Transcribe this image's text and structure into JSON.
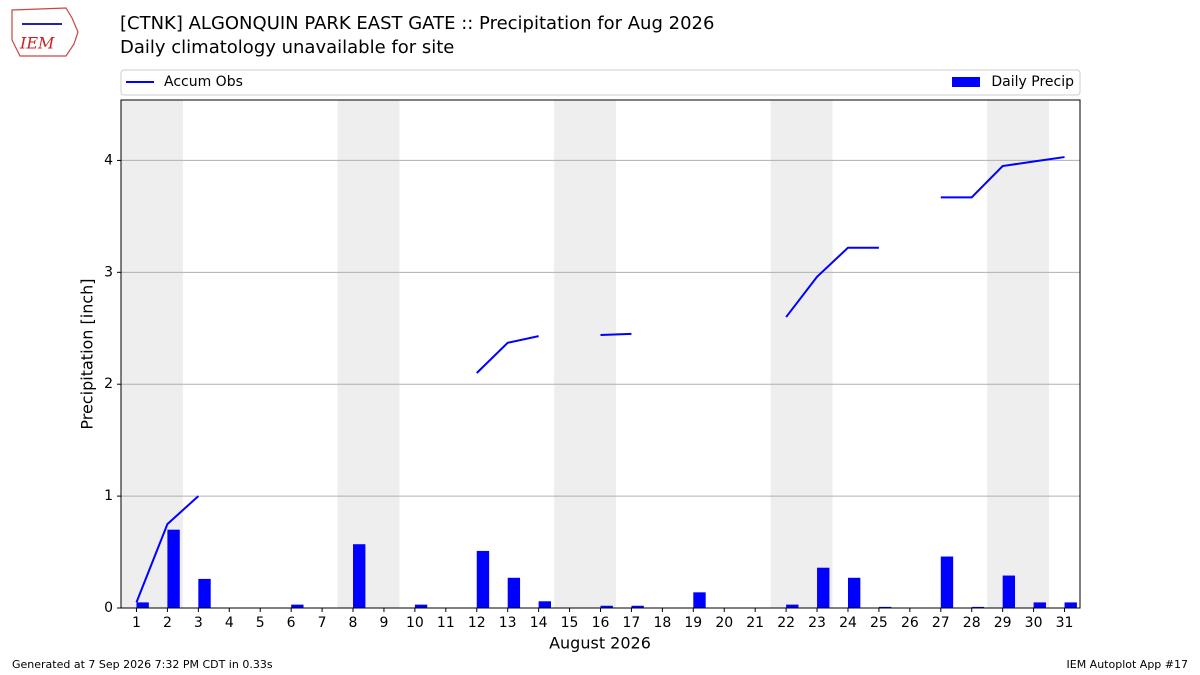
{
  "chart_data": {
    "type": "bar",
    "title": "[CTNK] ALGONQUIN PARK EAST GATE :: Precipitation for Aug 2026",
    "subtitle": "Daily climatology unavailable for site",
    "logo_text": "IEM",
    "xlabel": "August 2026",
    "ylabel": "Precipitation [inch]",
    "footer_left": "Generated at 7 Sep 2026 7:32 PM CDT in 0.33s",
    "footer_right": "IEM Autoplot App #17",
    "x": [
      1,
      2,
      3,
      4,
      5,
      6,
      7,
      8,
      9,
      10,
      11,
      12,
      13,
      14,
      15,
      16,
      17,
      18,
      19,
      20,
      21,
      22,
      23,
      24,
      25,
      26,
      27,
      28,
      29,
      30,
      31
    ],
    "xlim": [
      0.5,
      31.5
    ],
    "xticks": [
      1,
      2,
      3,
      4,
      5,
      6,
      7,
      8,
      9,
      10,
      11,
      12,
      13,
      14,
      15,
      16,
      17,
      18,
      19,
      20,
      21,
      22,
      23,
      24,
      25,
      26,
      27,
      28,
      29,
      30,
      31
    ],
    "ylim": [
      0,
      4.54
    ],
    "yticks": [
      0,
      1,
      2,
      3,
      4
    ],
    "grid": true,
    "series": [
      {
        "name": "Accum Obs",
        "type": "line",
        "color": "#0000ff",
        "values": [
          0.05,
          0.75,
          1.0,
          null,
          null,
          null,
          null,
          null,
          null,
          null,
          null,
          2.1,
          2.37,
          2.43,
          null,
          2.44,
          2.45,
          null,
          null,
          null,
          null,
          2.6,
          2.96,
          3.22,
          3.22,
          null,
          3.67,
          3.67,
          3.95,
          3.99,
          4.03
        ]
      },
      {
        "name": "Daily Precip",
        "type": "bar",
        "color": "#0000ff",
        "values": [
          0.05,
          0.7,
          0.26,
          0,
          0,
          0.03,
          0,
          0.57,
          0,
          0.03,
          0,
          0.51,
          0.27,
          0.06,
          0,
          0.02,
          0.02,
          0,
          0.14,
          0,
          0,
          0.03,
          0.36,
          0.27,
          0.01,
          0,
          0.46,
          0.01,
          0.29,
          0.05,
          0.05
        ]
      }
    ]
  }
}
